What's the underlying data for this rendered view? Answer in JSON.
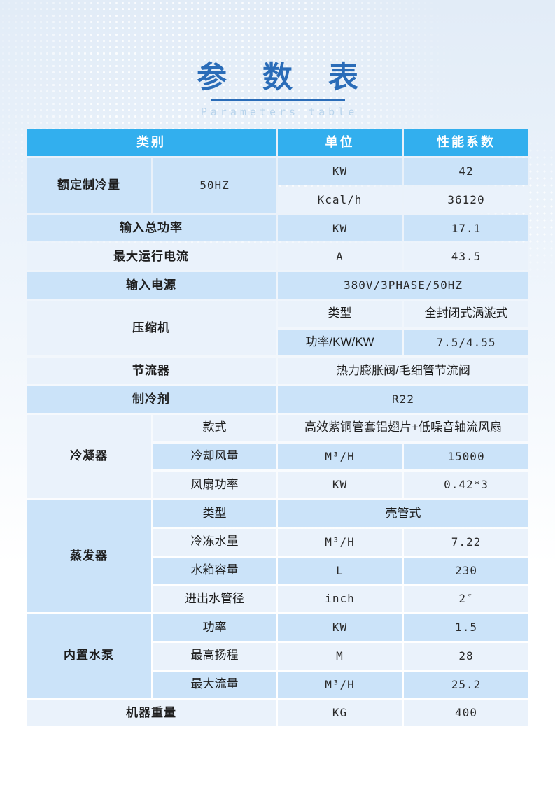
{
  "page": {
    "title": "参 数 表",
    "subtitle": "Parameters table"
  },
  "colors": {
    "header_bg": "#32AFEE",
    "row_medium": "#CBE3F9",
    "row_light": "#EAF2FB",
    "title_color": "#2A6CB8",
    "subtitle_color": "#B9D4EC"
  },
  "table": {
    "cells": [
      {
        "name": "header-category",
        "row": 1,
        "col": 1,
        "colspan": 2,
        "shade": "header",
        "text": "类别"
      },
      {
        "name": "header-unit",
        "row": 1,
        "col": 3,
        "shade": "header",
        "text": "单位"
      },
      {
        "name": "header-coefficient",
        "row": 1,
        "col": 4,
        "shade": "header",
        "text": "性能系数"
      },
      {
        "name": "rated-cooling-capacity-label",
        "row": 2,
        "col": 1,
        "rowspan": 2,
        "shade": "m",
        "bold": true,
        "text": "额定制冷量"
      },
      {
        "name": "rated-cooling-frequency",
        "row": 2,
        "col": 2,
        "rowspan": 2,
        "shade": "m",
        "latin": true,
        "text": "50HZ"
      },
      {
        "name": "rated-cooling-kw-unit",
        "row": 2,
        "col": 3,
        "shade": "m",
        "latin": true,
        "text": "KW"
      },
      {
        "name": "rated-cooling-kw-value",
        "row": 2,
        "col": 4,
        "shade": "m",
        "latin": true,
        "text": "42"
      },
      {
        "name": "rated-cooling-kcal-unit",
        "row": 3,
        "col": 3,
        "shade": "l",
        "latin": true,
        "text": "Kcal/h"
      },
      {
        "name": "rated-cooling-kcal-value",
        "row": 3,
        "col": 4,
        "shade": "l",
        "latin": true,
        "text": "36120"
      },
      {
        "name": "total-input-power-label",
        "row": 4,
        "col": 1,
        "colspan": 2,
        "shade": "m",
        "bold": true,
        "text": "输入总功率"
      },
      {
        "name": "total-input-power-unit",
        "row": 4,
        "col": 3,
        "shade": "m",
        "latin": true,
        "text": "KW"
      },
      {
        "name": "total-input-power-value",
        "row": 4,
        "col": 4,
        "shade": "m",
        "latin": true,
        "text": "17.1"
      },
      {
        "name": "max-running-current-label",
        "row": 5,
        "col": 1,
        "colspan": 2,
        "shade": "l",
        "bold": true,
        "text": "最大运行电流"
      },
      {
        "name": "max-running-current-unit",
        "row": 5,
        "col": 3,
        "shade": "l",
        "latin": true,
        "text": "A"
      },
      {
        "name": "max-running-current-value",
        "row": 5,
        "col": 4,
        "shade": "l",
        "latin": true,
        "text": "43.5"
      },
      {
        "name": "power-supply-label",
        "row": 6,
        "col": 1,
        "colspan": 2,
        "shade": "m",
        "bold": true,
        "text": "输入电源"
      },
      {
        "name": "power-supply-value",
        "row": 6,
        "col": 3,
        "colspan": 2,
        "shade": "m",
        "latin": true,
        "text": "380V/3PHASE/50HZ"
      },
      {
        "name": "compressor-label",
        "row": 7,
        "col": 1,
        "colspan": 2,
        "rowspan": 2,
        "shade": "l",
        "bold": true,
        "text": "压缩机"
      },
      {
        "name": "compressor-type-label",
        "row": 7,
        "col": 3,
        "shade": "l",
        "text": "类型"
      },
      {
        "name": "compressor-type-value",
        "row": 7,
        "col": 4,
        "shade": "l",
        "text": "全封闭式涡漩式"
      },
      {
        "name": "compressor-power-label",
        "row": 8,
        "col": 3,
        "shade": "m",
        "text": "功率/KW/KW"
      },
      {
        "name": "compressor-power-value",
        "row": 8,
        "col": 4,
        "shade": "m",
        "latin": true,
        "text": "7.5/4.55"
      },
      {
        "name": "throttle-label",
        "row": 9,
        "col": 1,
        "colspan": 2,
        "shade": "l",
        "bold": true,
        "text": "节流器"
      },
      {
        "name": "throttle-value",
        "row": 9,
        "col": 3,
        "colspan": 2,
        "shade": "l",
        "text": "热力膨胀阀/毛细管节流阀"
      },
      {
        "name": "refrigerant-label",
        "row": 10,
        "col": 1,
        "colspan": 2,
        "shade": "m",
        "bold": true,
        "text": "制冷剂"
      },
      {
        "name": "refrigerant-value",
        "row": 10,
        "col": 3,
        "colspan": 2,
        "shade": "m",
        "latin": true,
        "text": "R22"
      },
      {
        "name": "condenser-label",
        "row": 11,
        "col": 1,
        "rowspan": 3,
        "shade": "l",
        "bold": true,
        "text": "冷凝器"
      },
      {
        "name": "condenser-style-label",
        "row": 11,
        "col": 2,
        "shade": "l",
        "text": "款式"
      },
      {
        "name": "condenser-style-value",
        "row": 11,
        "col": 3,
        "colspan": 2,
        "shade": "l",
        "text": "高效紫铜管套铝翅片+低噪音轴流风扇"
      },
      {
        "name": "condenser-airflow-label",
        "row": 12,
        "col": 2,
        "shade": "m",
        "text": "冷却风量"
      },
      {
        "name": "condenser-airflow-unit",
        "row": 12,
        "col": 3,
        "shade": "m",
        "latin": true,
        "text": "M³/H"
      },
      {
        "name": "condenser-airflow-value",
        "row": 12,
        "col": 4,
        "shade": "m",
        "latin": true,
        "text": "15000"
      },
      {
        "name": "condenser-fan-power-label",
        "row": 13,
        "col": 2,
        "shade": "l",
        "text": "风扇功率"
      },
      {
        "name": "condenser-fan-power-unit",
        "row": 13,
        "col": 3,
        "shade": "l",
        "latin": true,
        "text": "KW"
      },
      {
        "name": "condenser-fan-power-value",
        "row": 13,
        "col": 4,
        "shade": "l",
        "latin": true,
        "text": "0.42*3"
      },
      {
        "name": "evaporator-label",
        "row": 14,
        "col": 1,
        "rowspan": 4,
        "shade": "m",
        "bold": true,
        "text": "蒸发器"
      },
      {
        "name": "evaporator-type-label",
        "row": 14,
        "col": 2,
        "shade": "m",
        "text": "类型"
      },
      {
        "name": "evaporator-type-value",
        "row": 14,
        "col": 3,
        "colspan": 2,
        "shade": "m",
        "text": "壳管式"
      },
      {
        "name": "evaporator-chilled-water-label",
        "row": 15,
        "col": 2,
        "shade": "l",
        "text": "冷冻水量"
      },
      {
        "name": "evaporator-chilled-water-unit",
        "row": 15,
        "col": 3,
        "shade": "l",
        "latin": true,
        "text": "M³/H"
      },
      {
        "name": "evaporator-chilled-water-value",
        "row": 15,
        "col": 4,
        "shade": "l",
        "latin": true,
        "text": "7.22"
      },
      {
        "name": "evaporator-tank-capacity-label",
        "row": 16,
        "col": 2,
        "shade": "m",
        "text": "水箱容量"
      },
      {
        "name": "evaporator-tank-capacity-unit",
        "row": 16,
        "col": 3,
        "shade": "m",
        "latin": true,
        "text": "L"
      },
      {
        "name": "evaporator-tank-capacity-value",
        "row": 16,
        "col": 4,
        "shade": "m",
        "latin": true,
        "text": "230"
      },
      {
        "name": "evaporator-pipe-diameter-label",
        "row": 17,
        "col": 2,
        "shade": "l",
        "text": "进出水管径"
      },
      {
        "name": "evaporator-pipe-diameter-unit",
        "row": 17,
        "col": 3,
        "shade": "l",
        "latin": true,
        "text": "inch"
      },
      {
        "name": "evaporator-pipe-diameter-value",
        "row": 17,
        "col": 4,
        "shade": "l",
        "latin": true,
        "text": "2″"
      },
      {
        "name": "pump-label",
        "row": 18,
        "col": 1,
        "rowspan": 3,
        "shade": "m",
        "bold": true,
        "text": "内置水泵"
      },
      {
        "name": "pump-power-label",
        "row": 18,
        "col": 2,
        "shade": "m",
        "text": "功率"
      },
      {
        "name": "pump-power-unit",
        "row": 18,
        "col": 3,
        "shade": "m",
        "latin": true,
        "text": "KW"
      },
      {
        "name": "pump-power-value",
        "row": 18,
        "col": 4,
        "shade": "m",
        "latin": true,
        "text": "1.5"
      },
      {
        "name": "pump-head-label",
        "row": 19,
        "col": 2,
        "shade": "l",
        "text": "最高扬程"
      },
      {
        "name": "pump-head-unit",
        "row": 19,
        "col": 3,
        "shade": "l",
        "latin": true,
        "text": "M"
      },
      {
        "name": "pump-head-value",
        "row": 19,
        "col": 4,
        "shade": "l",
        "latin": true,
        "text": "28"
      },
      {
        "name": "pump-flow-label",
        "row": 20,
        "col": 2,
        "shade": "m",
        "text": "最大流量"
      },
      {
        "name": "pump-flow-unit",
        "row": 20,
        "col": 3,
        "shade": "m",
        "latin": true,
        "text": "M³/H"
      },
      {
        "name": "pump-flow-value",
        "row": 20,
        "col": 4,
        "shade": "m",
        "latin": true,
        "text": "25.2"
      },
      {
        "name": "machine-weight-label",
        "row": 21,
        "col": 1,
        "colspan": 2,
        "shade": "l",
        "bold": true,
        "text": "机器重量"
      },
      {
        "name": "machine-weight-unit",
        "row": 21,
        "col": 3,
        "shade": "l",
        "latin": true,
        "text": "KG"
      },
      {
        "name": "machine-weight-value",
        "row": 21,
        "col": 4,
        "shade": "l",
        "latin": true,
        "text": "400"
      }
    ]
  }
}
